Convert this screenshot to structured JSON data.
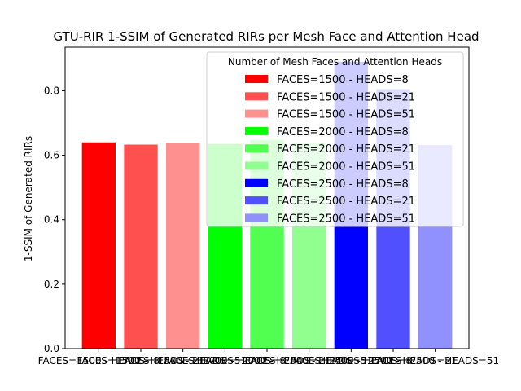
{
  "chart_data": {
    "type": "bar",
    "title": "GTU-RIR 1-SSIM of Generated RIRs per Mesh Face and Attention Head",
    "xlabel": "",
    "ylabel": "1-SSIM of Generated RIRs",
    "ylim": [
      0,
      0.935
    ],
    "yticks": [
      "0.0",
      "0.2",
      "0.4",
      "0.6",
      "0.8"
    ],
    "grid": false,
    "legend": {
      "title": "Number of Mesh Faces and Attention Heads",
      "placement": "upper-right"
    },
    "categories": [
      "FACES=1500 - HEADS=8",
      "FACES=1500 - HEADS=21",
      "FACES=1500 - HEADS=51",
      "FACES=2000 - HEADS=8",
      "FACES=2000 - HEADS=21",
      "FACES=2000 - HEADS=51",
      "FACES=2500 - HEADS=8",
      "FACES=2500 - HEADS=21",
      "FACES=2500 - HEADS=51"
    ],
    "values": [
      0.64,
      0.633,
      0.638,
      0.635,
      0.648,
      0.64,
      0.89,
      0.805,
      0.632
    ],
    "colors": [
      "#ff0000",
      "#ff5050",
      "#ff9090",
      "#00ff00",
      "#50ff50",
      "#90ff90",
      "#0000ff",
      "#5050ff",
      "#9090ff"
    ]
  }
}
